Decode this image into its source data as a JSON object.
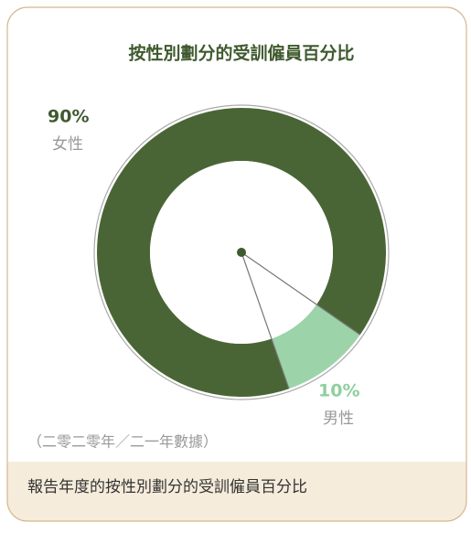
{
  "chart_data": {
    "type": "pie",
    "donut": true,
    "title": "按性別劃分的受訓僱員百分比",
    "categories": [
      "女性",
      "男性"
    ],
    "values": [
      90,
      10
    ],
    "value_labels": [
      "90%",
      "10%"
    ],
    "colors": [
      "#4a6535",
      "#9dd3a9"
    ],
    "note": "（二零二零年／二一年數據）",
    "caption": "報告年度的按性別劃分的受訓僱員百分比"
  }
}
